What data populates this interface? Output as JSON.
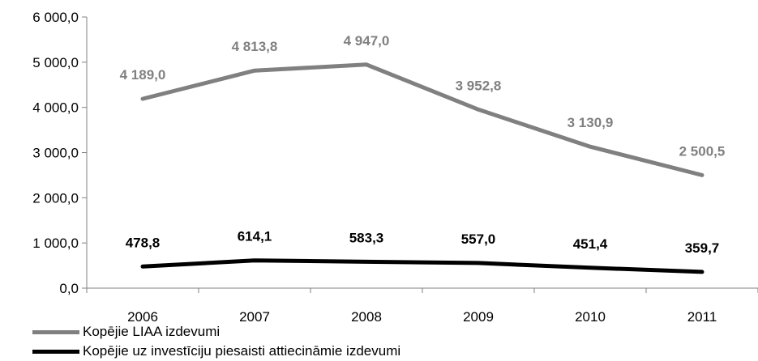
{
  "chart_data": {
    "type": "line",
    "x": [
      "2006",
      "2007",
      "2008",
      "2009",
      "2010",
      "2011"
    ],
    "y_ticks": [
      "0,0",
      "1 000,0",
      "2 000,0",
      "3 000,0",
      "4 000,0",
      "5 000,0",
      "6 000,0"
    ],
    "ylim": [
      0,
      6000
    ],
    "grid": false,
    "legend_position": "bottom-left",
    "series": [
      {
        "name": "Kopējie LIAA izdevumi",
        "color": "#808080",
        "values": [
          4189.0,
          4813.8,
          4947.0,
          3952.8,
          3130.9,
          2500.5
        ],
        "labels": [
          "4 189,0",
          "4 813,8",
          "4 947,0",
          "3 952,8",
          "3 130,9",
          "2 500,5"
        ]
      },
      {
        "name": "Kopējie uz investīciju piesaisti attiecināmie izdevumi",
        "color": "#000000",
        "values": [
          478.8,
          614.1,
          583.3,
          557.0,
          451.4,
          359.7
        ],
        "labels": [
          "478,8",
          "614,1",
          "583,3",
          "557,0",
          "451,4",
          "359,7"
        ]
      }
    ]
  }
}
